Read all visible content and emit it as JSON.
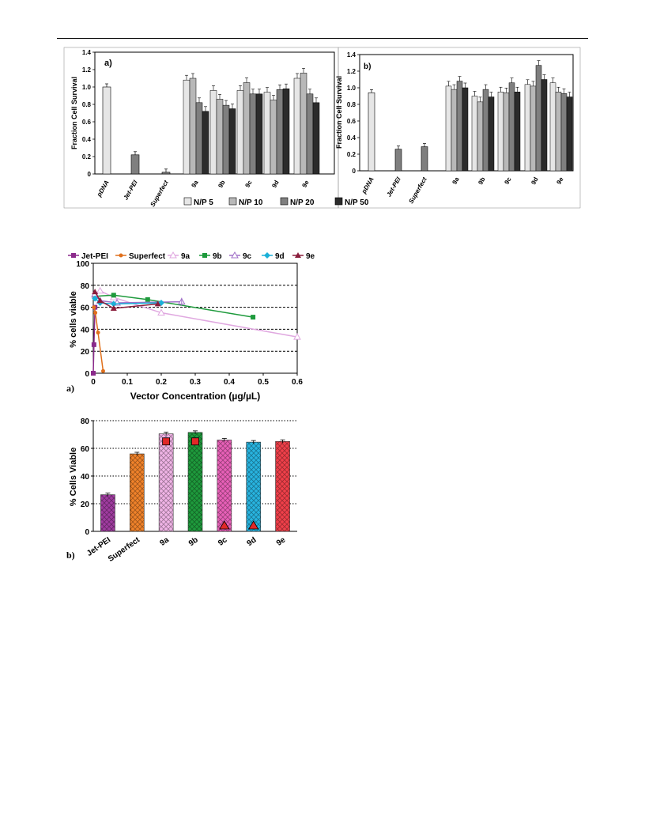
{
  "figure_top": {
    "legend": [
      "N/P 5",
      "N/P 10",
      "N/P 20",
      "N/P 50"
    ],
    "series_colors": [
      "#e6e6e6",
      "#b8b8b8",
      "#7f7f7f",
      "#2b2b2b"
    ]
  },
  "figure_bottom": {
    "series_colors": {
      "Jet-PEI": "#8b2a8b",
      "Superfect": "#e0701c",
      "9a": "#e0a8e0",
      "9b": "#1e9a3c",
      "9c": "#a070c8",
      "9d": "#1ab0d8",
      "9e": "#8a1e3c"
    },
    "bar_colors": [
      "#a03ca0",
      "#f0822a",
      "#f0b4e6",
      "#1e9a3c",
      "#e860b8",
      "#28b4e0",
      "#f0404a"
    ]
  },
  "chart_data": [
    {
      "type": "bar",
      "panel": "a)",
      "ylabel": "Fraction Cell Survival",
      "ylim": [
        0,
        1.4
      ],
      "yticks": [
        "0",
        "0.2",
        "0.4",
        "0.6",
        "0.8",
        "1.0",
        "1.2",
        "1.4"
      ],
      "categories": [
        "pDNA",
        "Jet-PEI",
        "Superfect",
        "9a",
        "9b",
        "9c",
        "9d",
        "9e"
      ],
      "single_values": {
        "pDNA": 1.0,
        "Jet-PEI": 0.22,
        "Superfect": 0.02
      },
      "series": [
        {
          "name": "N/P 5",
          "values": [
            null,
            null,
            null,
            1.08,
            0.96,
            0.96,
            0.94,
            1.1
          ]
        },
        {
          "name": "N/P 10",
          "values": [
            null,
            null,
            null,
            1.1,
            0.86,
            1.05,
            0.85,
            1.16
          ]
        },
        {
          "name": "N/P 20",
          "values": [
            null,
            null,
            null,
            0.82,
            0.79,
            0.92,
            0.97,
            0.92
          ]
        },
        {
          "name": "N/P 50",
          "values": [
            null,
            null,
            null,
            0.72,
            0.75,
            0.92,
            0.98,
            0.82
          ]
        }
      ],
      "grid": false,
      "legend_position": "bottom"
    },
    {
      "type": "bar",
      "panel": "b)",
      "ylabel": "Fraction Cell Survival",
      "ylim": [
        0,
        1.4
      ],
      "yticks": [
        "0",
        "0.2",
        "0.4",
        "0.6",
        "0.8",
        "1.0",
        "1.2",
        "1.4"
      ],
      "categories": [
        "pDNA",
        "Jet-PEI",
        "Superfect",
        "9a",
        "9b",
        "9c",
        "9d",
        "9e"
      ],
      "single_values": {
        "pDNA": 0.94,
        "Jet-PEI": 0.26,
        "Superfect": 0.29
      },
      "series": [
        {
          "name": "N/P 5",
          "values": [
            null,
            null,
            null,
            1.02,
            0.9,
            0.95,
            1.04,
            1.06
          ]
        },
        {
          "name": "N/P 10",
          "values": [
            null,
            null,
            null,
            0.98,
            0.83,
            0.94,
            1.02,
            0.95
          ]
        },
        {
          "name": "N/P 20",
          "values": [
            null,
            null,
            null,
            1.08,
            0.98,
            1.06,
            1.27,
            0.93
          ]
        },
        {
          "name": "N/P 50",
          "values": [
            null,
            null,
            null,
            1.0,
            0.89,
            0.95,
            1.1,
            0.89
          ]
        }
      ],
      "grid": false
    },
    {
      "type": "line",
      "panel": "a)",
      "xlabel": "Vector Concentration (µg/µL)",
      "ylabel": "% cells viable",
      "xlim": [
        0,
        0.6
      ],
      "ylim": [
        0,
        100
      ],
      "xticks": [
        "0",
        "0.1",
        "0.2",
        "0.3",
        "0.4",
        "0.5",
        "0.6"
      ],
      "yticks": [
        "0",
        "20",
        "40",
        "60",
        "80",
        "100"
      ],
      "grid": "horizontal dashed",
      "legend_position": "top",
      "series": [
        {
          "name": "Jet-PEI",
          "x": [
            0,
            0.002,
            0.005
          ],
          "y": [
            0,
            26,
            60
          ]
        },
        {
          "name": "Superfect",
          "x": [
            0.002,
            0.006,
            0.014,
            0.029
          ],
          "y": [
            60,
            55,
            37,
            2
          ]
        },
        {
          "name": "9a",
          "x": [
            0.005,
            0.02,
            0.06,
            0.2,
            0.6
          ],
          "y": [
            71,
            75,
            69,
            55,
            33
          ]
        },
        {
          "name": "9b",
          "x": [
            0.005,
            0.06,
            0.16,
            0.47
          ],
          "y": [
            70,
            71,
            67,
            51
          ]
        },
        {
          "name": "9c",
          "x": [
            0.005,
            0.02,
            0.07,
            0.26
          ],
          "y": [
            72,
            66,
            64,
            65
          ]
        },
        {
          "name": "9d",
          "x": [
            0.005,
            0.02,
            0.06,
            0.2
          ],
          "y": [
            68,
            64,
            63,
            64
          ]
        },
        {
          "name": "9e",
          "x": [
            0.005,
            0.02,
            0.06,
            0.19
          ],
          "y": [
            74,
            66,
            59,
            63
          ]
        }
      ]
    },
    {
      "type": "bar",
      "panel": "b)",
      "ylabel": "% Cells Viable",
      "ylim": [
        0,
        80
      ],
      "yticks": [
        "0",
        "20",
        "40",
        "60",
        "80"
      ],
      "categories": [
        "Jet-PEI",
        "Superfect",
        "9a",
        "9b",
        "9c",
        "9d",
        "9e"
      ],
      "values": [
        26.5,
        56,
        70.5,
        71.5,
        66,
        64.5,
        65
      ],
      "markers": [
        {
          "category": "9a",
          "shape": "square",
          "value": 65
        },
        {
          "category": "9b",
          "shape": "square",
          "value": 65
        },
        {
          "category": "9c",
          "shape": "triangle",
          "value": 4
        },
        {
          "category": "9d",
          "shape": "triangle",
          "value": 4
        }
      ],
      "grid": "horizontal dotted"
    }
  ]
}
